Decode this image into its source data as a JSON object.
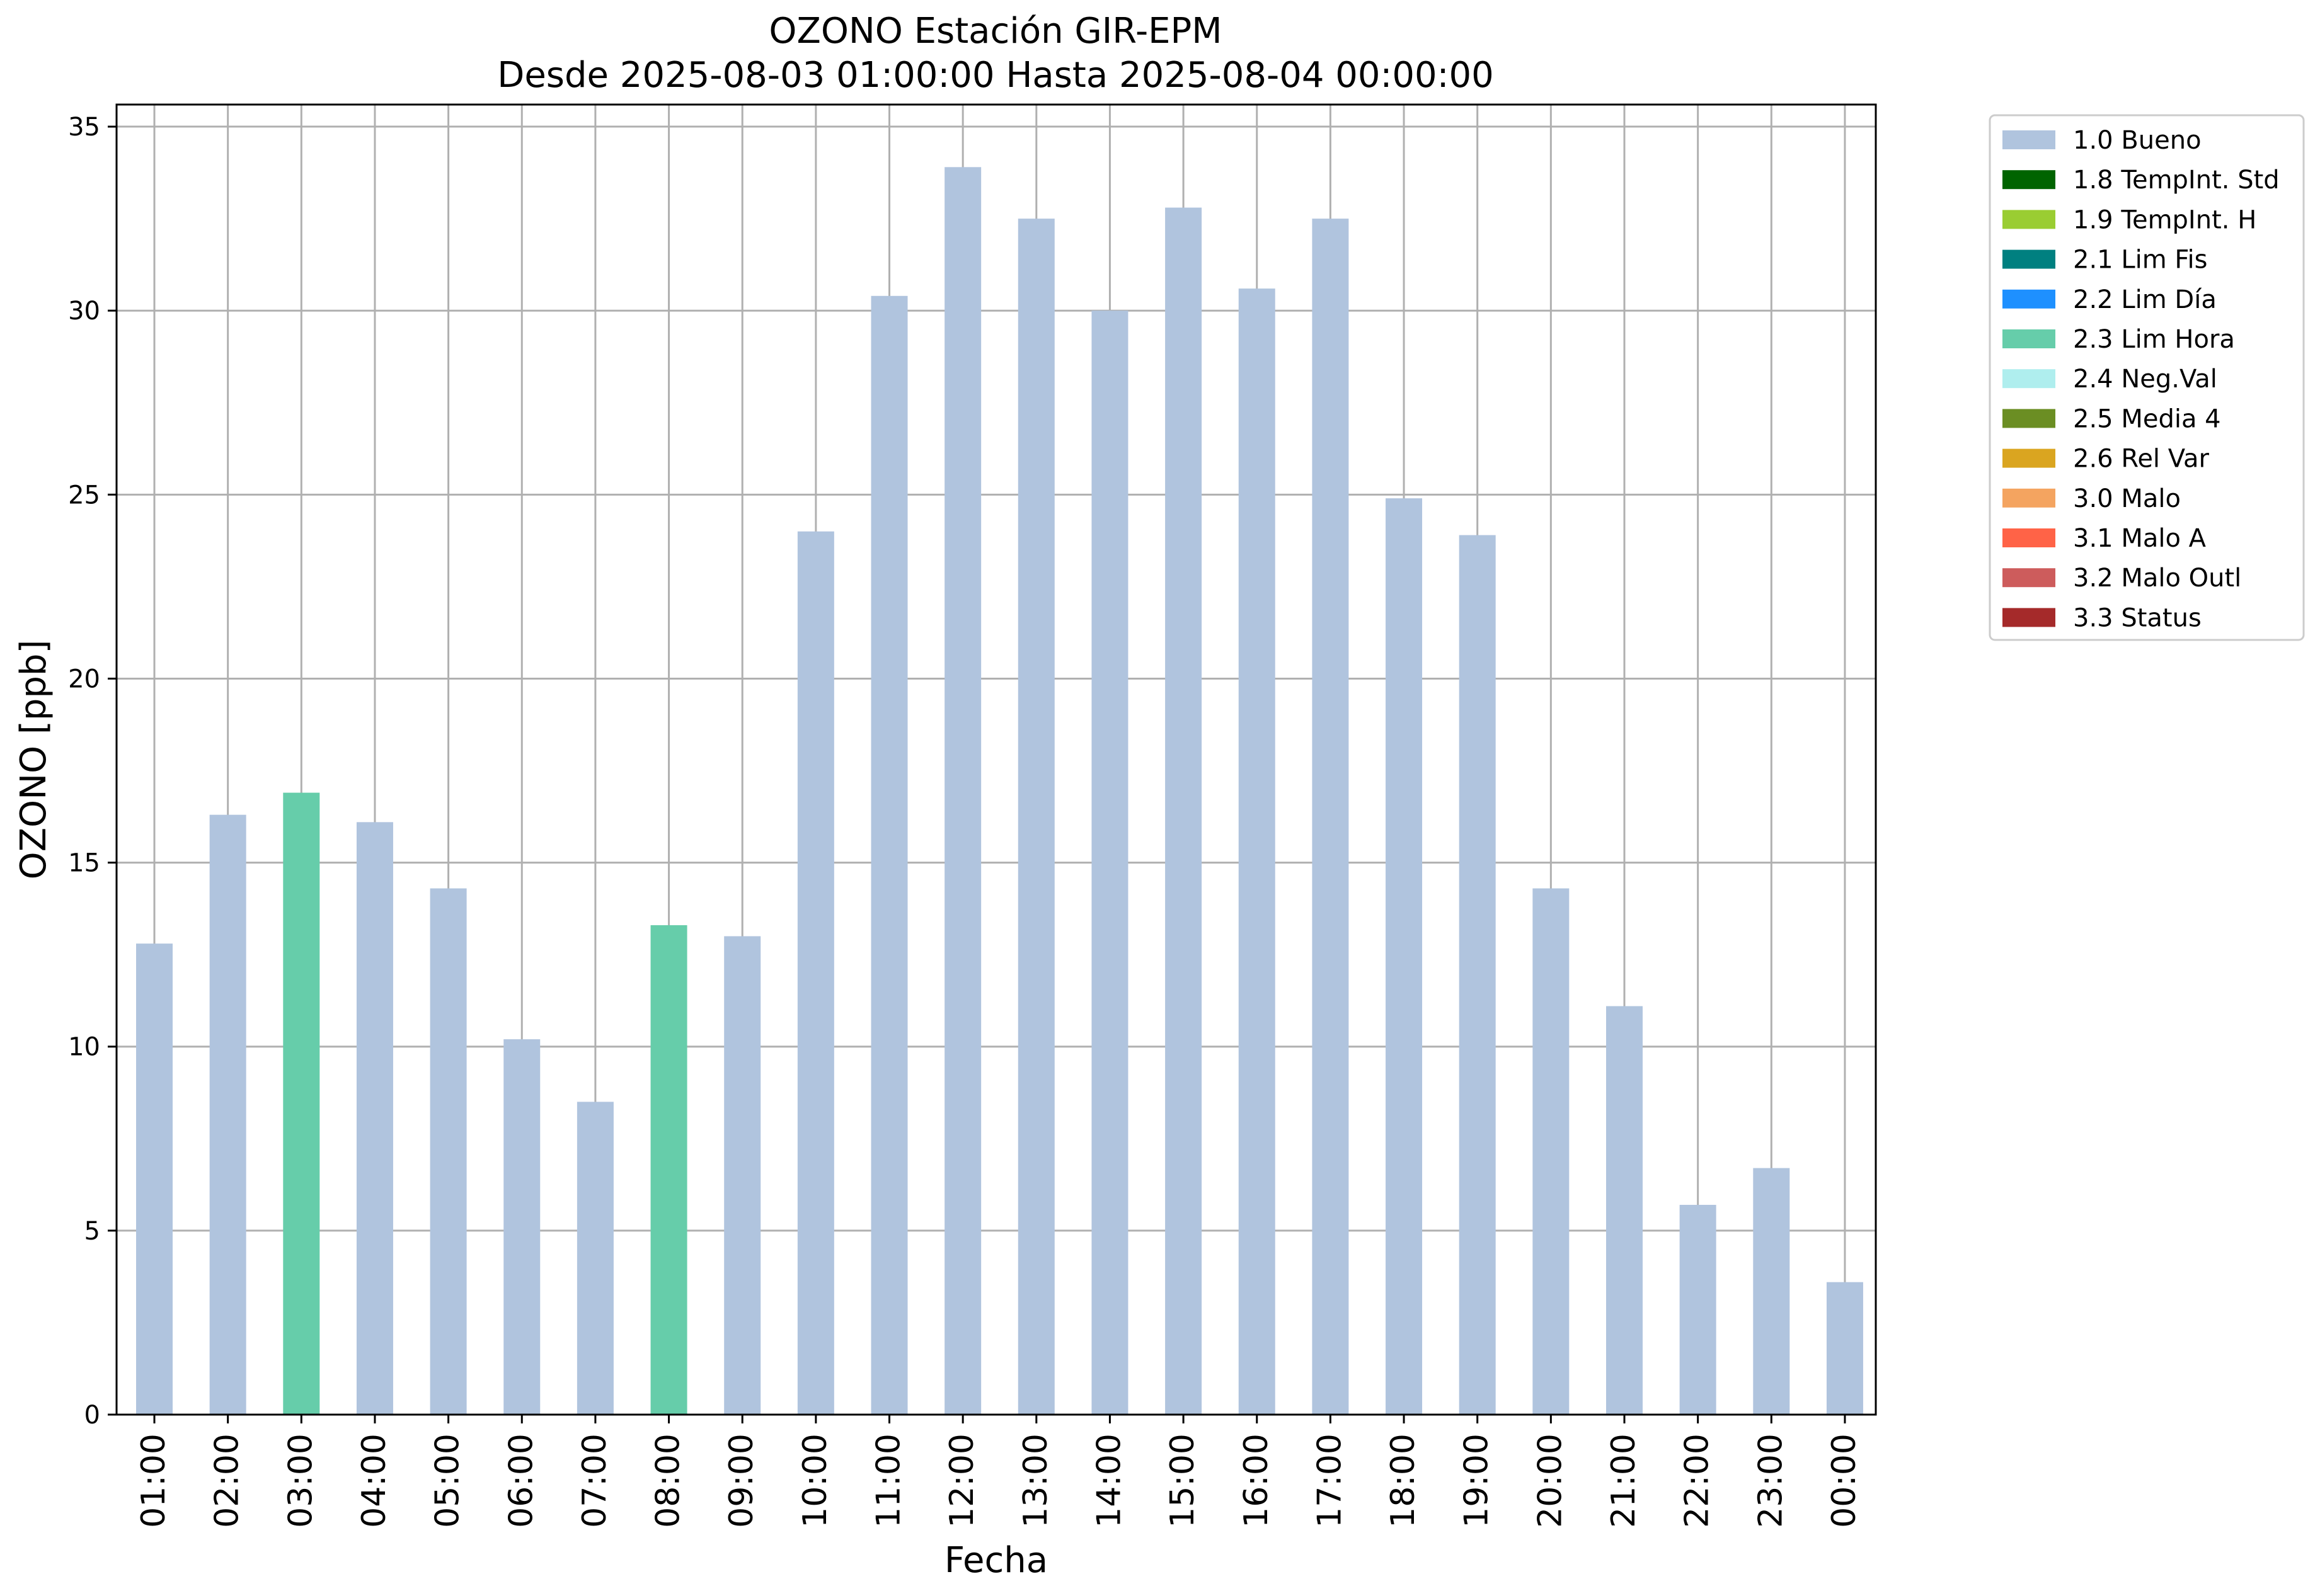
{
  "chart_data": {
    "type": "bar",
    "title": "OZONO Estación GIR-EPM",
    "subtitle": "Desde 2025-08-03 01:00:00 Hasta 2025-08-04 00:00:00",
    "xlabel": "Fecha",
    "ylabel": "OZONO [ppb]",
    "ylim": [
      0,
      35.6
    ],
    "yticks": [
      0,
      5,
      10,
      15,
      20,
      25,
      30,
      35
    ],
    "grid": true,
    "legend_position": "outside-top-right",
    "categories": [
      "01:00",
      "02:00",
      "03:00",
      "04:00",
      "05:00",
      "06:00",
      "07:00",
      "08:00",
      "09:00",
      "10:00",
      "11:00",
      "12:00",
      "13:00",
      "14:00",
      "15:00",
      "16:00",
      "17:00",
      "18:00",
      "19:00",
      "20:00",
      "21:00",
      "22:00",
      "23:00",
      "00:00"
    ],
    "values": [
      12.8,
      16.3,
      16.9,
      16.1,
      14.3,
      10.2,
      8.5,
      13.3,
      13.0,
      24.0,
      30.4,
      33.9,
      32.5,
      30.0,
      32.8,
      30.6,
      32.5,
      24.9,
      23.9,
      14.3,
      11.1,
      5.7,
      6.7,
      3.6
    ],
    "flags": [
      "1.0 Bueno",
      "1.0 Bueno",
      "2.3 Lim Hora",
      "1.0 Bueno",
      "1.0 Bueno",
      "1.0 Bueno",
      "1.0 Bueno",
      "2.3 Lim Hora",
      "1.0 Bueno",
      "1.0 Bueno",
      "1.0 Bueno",
      "1.0 Bueno",
      "1.0 Bueno",
      "1.0 Bueno",
      "1.0 Bueno",
      "1.0 Bueno",
      "1.0 Bueno",
      "1.0 Bueno",
      "1.0 Bueno",
      "1.0 Bueno",
      "1.0 Bueno",
      "1.0 Bueno",
      "1.0 Bueno",
      "1.0 Bueno"
    ],
    "legend": [
      {
        "label": "1.0 Bueno",
        "color": "#b0c4de"
      },
      {
        "label": "1.8 TempInt. Std",
        "color": "#006400"
      },
      {
        "label": "1.9 TempInt. H",
        "color": "#9acd32"
      },
      {
        "label": "2.1 Lim Fis",
        "color": "#008080"
      },
      {
        "label": "2.2 Lim Día",
        "color": "#1e90ff"
      },
      {
        "label": "2.3 Lim Hora",
        "color": "#66cdaa"
      },
      {
        "label": "2.4 Neg.Val",
        "color": "#afeeee"
      },
      {
        "label": "2.5 Media 4",
        "color": "#6b8e23"
      },
      {
        "label": "2.6 Rel Var",
        "color": "#daa520"
      },
      {
        "label": "3.0 Malo",
        "color": "#f4a460"
      },
      {
        "label": "3.1 Malo A",
        "color": "#ff6347"
      },
      {
        "label": "3.2 Malo Outl",
        "color": "#cd5c5c"
      },
      {
        "label": "3.3 Status",
        "color": "#a52a2a"
      }
    ]
  }
}
